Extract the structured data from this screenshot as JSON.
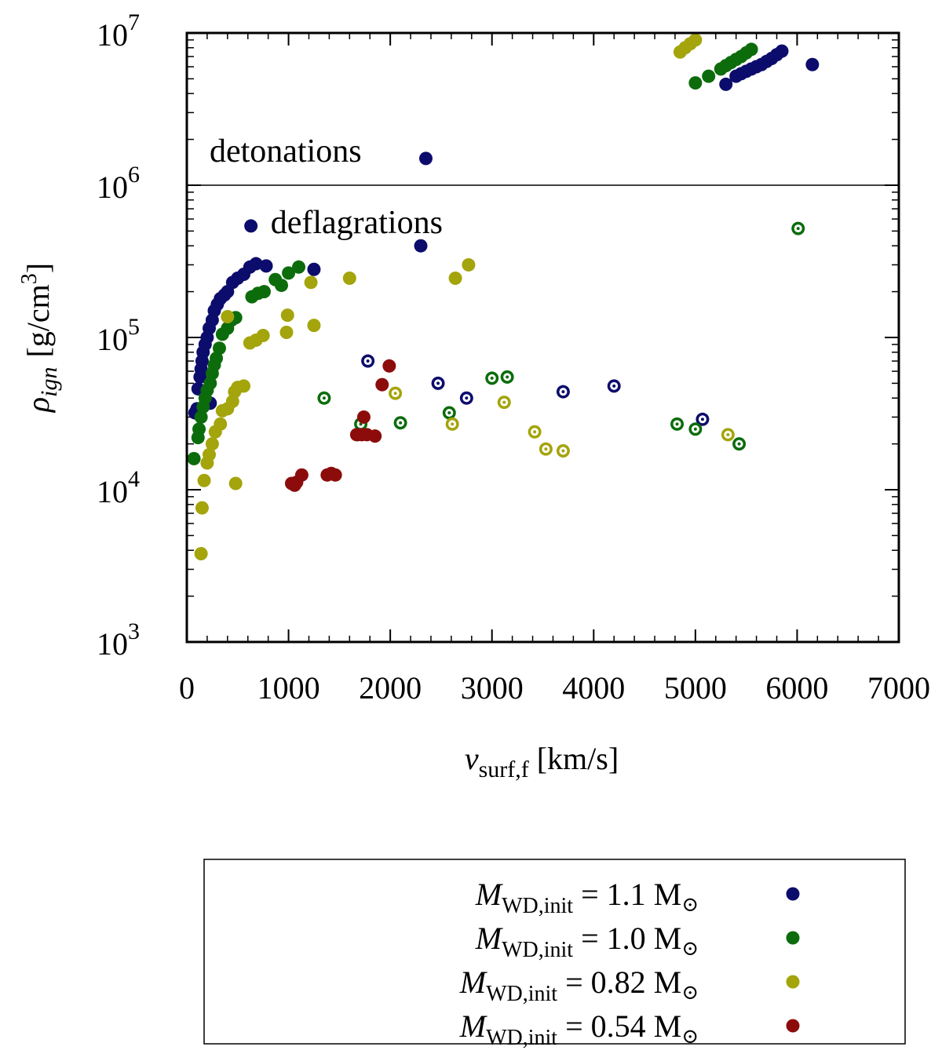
{
  "chart_data": {
    "type": "scatter",
    "xlabel": {
      "var": "v",
      "sub": "surf,f",
      "unit": "[km/s]"
    },
    "ylabel": {
      "var": "ρ",
      "sub": "ign",
      "unit_pre": "[g/cm",
      "unit_sup": "3",
      "unit_post": "]"
    },
    "xlim": [
      0,
      7000
    ],
    "ylim": [
      1000,
      10000000
    ],
    "yscale": "log",
    "x_ticks": [
      0,
      1000,
      2000,
      3000,
      4000,
      5000,
      6000,
      7000
    ],
    "x_tick_labels": [
      "0",
      "1000",
      "2000",
      "3000",
      "4000",
      "5000",
      "6000",
      "7000"
    ],
    "y_ticks": [
      1000,
      10000,
      100000,
      1000000,
      10000000
    ],
    "y_tick_labels": [
      {
        "base": "10",
        "exp": "3"
      },
      {
        "base": "10",
        "exp": "4"
      },
      {
        "base": "10",
        "exp": "5"
      },
      {
        "base": "10",
        "exp": "6"
      },
      {
        "base": "10",
        "exp": "7"
      }
    ],
    "threshold_line": {
      "y": 1000000
    },
    "annotations": [
      {
        "text": "detonations",
        "x": 100,
        "y": 1650000
      },
      {
        "text": "deflagrations",
        "x": 700,
        "y": 560000
      }
    ],
    "legend": {
      "position": "below",
      "marker_note": "filled and ringed markers"
    },
    "series": [
      {
        "name": "M_WD,init = 1.1 M_sun",
        "legend": {
          "var": "M",
          "sub": "WD,init",
          "rest": " = 1.1 M",
          "sun": "⊙"
        },
        "color": "#0c0c6c",
        "points": [
          [
            80,
            32000
          ],
          [
            100,
            34000
          ],
          [
            110,
            46000
          ],
          [
            130,
            55000
          ],
          [
            140,
            62000
          ],
          [
            150,
            70000
          ],
          [
            160,
            80000
          ],
          [
            180,
            90000
          ],
          [
            200,
            100000
          ],
          [
            220,
            115000
          ],
          [
            250,
            130000
          ],
          [
            270,
            150000
          ],
          [
            300,
            165000
          ],
          [
            330,
            180000
          ],
          [
            370,
            190000
          ],
          [
            400,
            200000
          ],
          [
            450,
            230000
          ],
          [
            500,
            245000
          ],
          [
            560,
            260000
          ],
          [
            620,
            290000
          ],
          [
            680,
            305000
          ],
          [
            780,
            295000
          ],
          [
            630,
            540000
          ],
          [
            1250,
            280000
          ],
          [
            2300,
            400000
          ],
          [
            2350,
            1500000
          ],
          [
            230,
            37000
          ],
          [
            5300,
            4600000
          ],
          [
            5400,
            5200000
          ],
          [
            5450,
            5400000
          ],
          [
            5500,
            5600000
          ],
          [
            5550,
            5800000
          ],
          [
            5600,
            6000000
          ],
          [
            5650,
            6200000
          ],
          [
            5700,
            6500000
          ],
          [
            5750,
            6800000
          ],
          [
            5800,
            7200000
          ],
          [
            5850,
            7600000
          ],
          [
            6150,
            6200000
          ]
        ],
        "rings": [
          [
            1780,
            70000
          ],
          [
            2470,
            50000
          ],
          [
            2750,
            40000
          ],
          [
            3700,
            44000
          ],
          [
            4200,
            48000
          ],
          [
            5070,
            29000
          ]
        ]
      },
      {
        "name": "M_WD,init = 1.0 M_sun",
        "legend": {
          "var": "M",
          "sub": "WD,init",
          "rest": " = 1.0 M",
          "sun": "⊙"
        },
        "color": "#0c6c0c",
        "points": [
          [
            70,
            16000
          ],
          [
            110,
            22000
          ],
          [
            120,
            25000
          ],
          [
            140,
            30000
          ],
          [
            160,
            35000
          ],
          [
            180,
            40000
          ],
          [
            200,
            45000
          ],
          [
            230,
            50000
          ],
          [
            250,
            58000
          ],
          [
            270,
            66000
          ],
          [
            290,
            73000
          ],
          [
            320,
            85000
          ],
          [
            350,
            105000
          ],
          [
            400,
            115000
          ],
          [
            440,
            130000
          ],
          [
            480,
            135000
          ],
          [
            640,
            185000
          ],
          [
            700,
            195000
          ],
          [
            760,
            200000
          ],
          [
            870,
            240000
          ],
          [
            930,
            220000
          ],
          [
            1000,
            265000
          ],
          [
            1100,
            290000
          ],
          [
            1680,
            23000
          ],
          [
            5000,
            4700000
          ],
          [
            5130,
            5200000
          ],
          [
            5250,
            5800000
          ],
          [
            5300,
            6100000
          ],
          [
            5350,
            6400000
          ],
          [
            5400,
            6700000
          ],
          [
            5450,
            7000000
          ],
          [
            5500,
            7400000
          ],
          [
            5550,
            7800000
          ]
        ],
        "rings": [
          [
            1350,
            40000
          ],
          [
            1710,
            27000
          ],
          [
            2100,
            27500
          ],
          [
            2580,
            32000
          ],
          [
            3000,
            54000
          ],
          [
            3150,
            55000
          ],
          [
            4820,
            27000
          ],
          [
            5000,
            25000
          ],
          [
            5430,
            20000
          ],
          [
            6010,
            520000
          ]
        ]
      },
      {
        "name": "M_WD,init = 0.82 M_sun",
        "legend": {
          "var": "M",
          "sub": "WD,init",
          "rest": " = 0.82 M",
          "sun": "⊙"
        },
        "color": "#a4a40c",
        "points": [
          [
            140,
            3800
          ],
          [
            150,
            7600
          ],
          [
            170,
            11500
          ],
          [
            200,
            15000
          ],
          [
            220,
            17000
          ],
          [
            250,
            20000
          ],
          [
            280,
            24000
          ],
          [
            330,
            27000
          ],
          [
            350,
            33000
          ],
          [
            400,
            34000
          ],
          [
            450,
            38000
          ],
          [
            470,
            44000
          ],
          [
            500,
            47000
          ],
          [
            560,
            48000
          ],
          [
            480,
            11000
          ],
          [
            400,
            137000
          ],
          [
            620,
            92000
          ],
          [
            680,
            96000
          ],
          [
            750,
            103000
          ],
          [
            980,
            108000
          ],
          [
            990,
            140000
          ],
          [
            1220,
            230000
          ],
          [
            1250,
            120000
          ],
          [
            1600,
            245000
          ],
          [
            2640,
            245000
          ],
          [
            2770,
            300000
          ],
          [
            4850,
            7500000
          ],
          [
            4900,
            8000000
          ],
          [
            4950,
            8500000
          ],
          [
            5000,
            9000000
          ]
        ],
        "rings": [
          [
            2050,
            43000
          ],
          [
            2610,
            27000
          ],
          [
            3120,
            37500
          ],
          [
            3420,
            24000
          ],
          [
            3530,
            18500
          ],
          [
            3700,
            18000
          ],
          [
            5320,
            23000
          ]
        ]
      },
      {
        "name": "M_WD,init = 0.54 M_sun",
        "legend": {
          "var": "M",
          "sub": "WD,init",
          "rest": " = 0.54 M",
          "sun": "⊙"
        },
        "color": "#8c0c0c",
        "points": [
          [
            1030,
            11000
          ],
          [
            1060,
            10700
          ],
          [
            1080,
            11200
          ],
          [
            1130,
            12500
          ],
          [
            1380,
            12500
          ],
          [
            1420,
            12800
          ],
          [
            1460,
            12500
          ],
          [
            1670,
            23000
          ],
          [
            1720,
            23000
          ],
          [
            1770,
            23000
          ],
          [
            1850,
            22500
          ],
          [
            1920,
            49000
          ],
          [
            1990,
            65000
          ],
          [
            1740,
            30000
          ]
        ],
        "rings": []
      }
    ]
  }
}
